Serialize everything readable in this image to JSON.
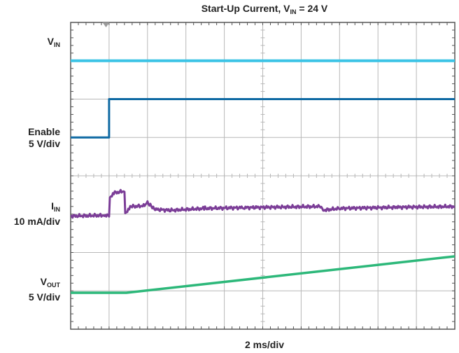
{
  "chart_data": {
    "type": "line",
    "title": {
      "prefix": "Start-Up Current, V",
      "sub": "IN",
      "suffix": " = 24 V"
    },
    "xlabel": "2 ms/div",
    "x_scale_ms_per_div": 2,
    "x_divisions": 10,
    "y_divisions": 8,
    "xlim_div": [
      0,
      10
    ],
    "ylim_div": [
      0,
      8
    ],
    "grid": true,
    "colors": {
      "vin": "#3cc4e6",
      "enable": "#0f6aa3",
      "iin": "#7b3d97",
      "vout": "#2db87a",
      "grid": "#b8b8b8",
      "frame": "#555555"
    },
    "labels": {
      "vin": {
        "main": "V",
        "sub": "IN",
        "scale": ""
      },
      "enable": {
        "main": "Enable",
        "sub": "",
        "scale": "5 V/div"
      },
      "iin": {
        "main": "I",
        "sub": "IN",
        "scale": "10 mA/div"
      },
      "vout": {
        "main": "V",
        "sub": "OUT",
        "scale": "5 V/div"
      }
    },
    "series": [
      {
        "key": "vin",
        "x": [
          0,
          10
        ],
        "y": [
          7.0,
          7.0
        ]
      },
      {
        "key": "enable",
        "x": [
          0,
          1.0,
          1.0,
          10
        ],
        "y": [
          5.0,
          5.0,
          6.0,
          6.0
        ]
      },
      {
        "key": "iin",
        "x": [
          0,
          0.9,
          1.0,
          1.02,
          1.1,
          1.4,
          1.42,
          1.5,
          1.6,
          1.95,
          2.0,
          2.05,
          2.15,
          2.3,
          2.6,
          3.5,
          4.5,
          6.5,
          6.55,
          7.0,
          8.5,
          10
        ],
        "y": [
          2.95,
          2.97,
          2.95,
          3.42,
          3.55,
          3.6,
          3.0,
          3.15,
          3.2,
          3.22,
          3.35,
          3.25,
          3.15,
          3.12,
          3.1,
          3.15,
          3.17,
          3.2,
          3.1,
          3.15,
          3.18,
          3.2
        ]
      },
      {
        "key": "vout",
        "x": [
          0,
          1.45,
          10
        ],
        "y": [
          0.95,
          0.95,
          1.9
        ]
      }
    ]
  }
}
